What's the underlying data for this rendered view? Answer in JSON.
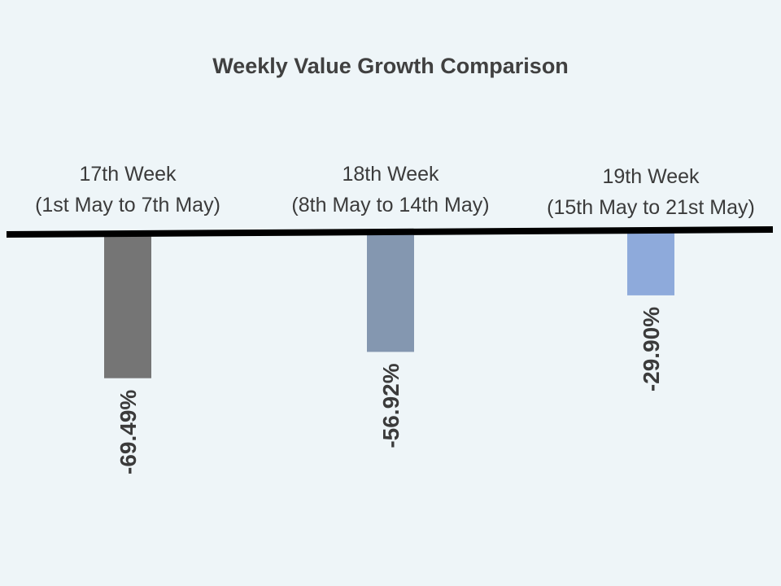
{
  "chart_data": {
    "type": "bar",
    "title": "Weekly Value Growth Comparison",
    "categories": [
      [
        "17th Week",
        "(1st May to 7th May)"
      ],
      [
        "18th Week",
        "(8th May to 14th May)"
      ],
      [
        "19th Week",
        "(15th May to 21st May)"
      ]
    ],
    "values": [
      -69.49,
      -56.92,
      -29.9
    ],
    "value_labels": [
      "-69.49%",
      "-56.92%",
      "-29.90%"
    ],
    "colors": [
      "#757575",
      "#8497b0",
      "#8eaadb"
    ],
    "ylim": [
      -100,
      0
    ],
    "grid": false,
    "legend": "none"
  }
}
